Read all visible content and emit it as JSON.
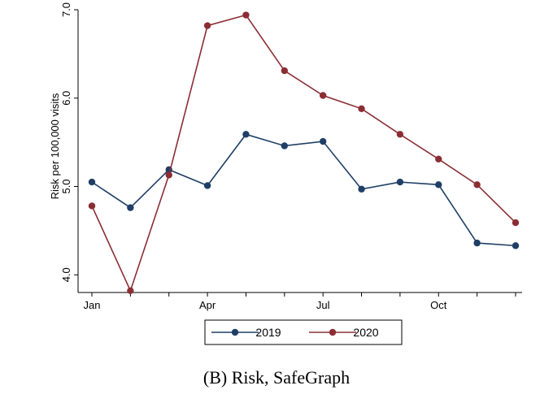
{
  "caption": "(B) Risk, SafeGraph",
  "chart_data": {
    "type": "line",
    "title": "",
    "xlabel": "",
    "ylabel": "Risk per 100,000 visits",
    "x": [
      1,
      2,
      3,
      4,
      5,
      6,
      7,
      8,
      9,
      10,
      11,
      12
    ],
    "xlim": [
      1,
      12
    ],
    "xticks": [
      1,
      2,
      3,
      4,
      5,
      6,
      7,
      8,
      9,
      10,
      11,
      12
    ],
    "xtick_labels": [
      "Jan",
      "",
      "",
      "Apr",
      "",
      "",
      "Jul",
      "",
      "",
      "Oct",
      "",
      ""
    ],
    "ylim": [
      3.8,
      7.0
    ],
    "yticks": [
      4.0,
      5.0,
      6.0,
      7.0
    ],
    "ytick_labels": [
      "4.0",
      "5.0",
      "6.0",
      "7.0"
    ],
    "grid": false,
    "legend_position": "bottom",
    "series": [
      {
        "name": "2019",
        "color": "#1f3f66",
        "values": [
          5.05,
          4.76,
          5.19,
          5.01,
          5.59,
          5.46,
          5.51,
          4.97,
          5.05,
          5.02,
          4.36,
          4.33
        ]
      },
      {
        "name": "2020",
        "color": "#8b2e34",
        "values": [
          4.78,
          3.82,
          5.13,
          6.82,
          6.94,
          6.31,
          6.03,
          5.88,
          5.59,
          5.31,
          5.02,
          4.59
        ]
      }
    ]
  }
}
